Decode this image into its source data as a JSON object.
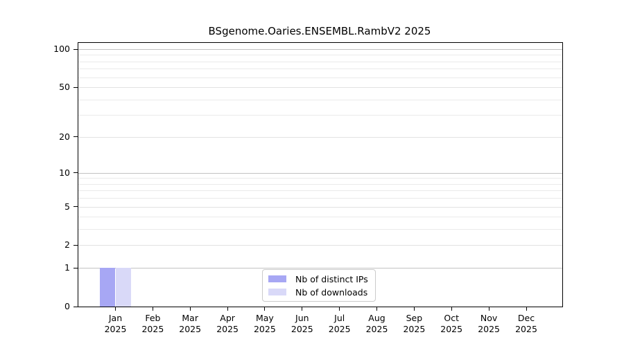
{
  "title": "BSgenome.Oaries.ENSEMBL.RambV2 2025",
  "colors": {
    "distinct_ips": "#a7a7f4",
    "downloads": "#d9d9f8",
    "grid_decade": "#c2c2c2",
    "grid_minor": "#eaeaea",
    "axis": "#000000",
    "legend_border": "#cacaca",
    "background": "#ffffff"
  },
  "chart_data": {
    "type": "bar",
    "title": "BSgenome.Oaries.ENSEMBL.RambV2 2025",
    "xlabel": "",
    "ylabel": "",
    "categories": [
      "Jan",
      "Feb",
      "Mar",
      "Apr",
      "May",
      "Jun",
      "Jul",
      "Aug",
      "Sep",
      "Oct",
      "Nov",
      "Dec"
    ],
    "year": "2025",
    "series": [
      {
        "name": "Nb of distinct IPs",
        "color": "#a7a7f4",
        "values": [
          1,
          0,
          0,
          0,
          0,
          0,
          0,
          0,
          0,
          0,
          0,
          0
        ]
      },
      {
        "name": "Nb of downloads",
        "color": "#d9d9f8",
        "values": [
          1,
          0,
          0,
          0,
          0,
          0,
          0,
          0,
          0,
          0,
          0,
          0
        ]
      }
    ],
    "y_axis": {
      "scale": "log1p",
      "ticks": [
        0,
        1,
        2,
        5,
        10,
        20,
        50,
        100
      ],
      "minor_ticks": [
        3,
        4,
        6,
        7,
        8,
        9,
        30,
        40,
        60,
        70,
        80,
        90
      ],
      "decade_ticks": [
        1,
        10,
        100
      ],
      "max_value": 110
    },
    "grid": true,
    "legend_position": "bottom-center"
  }
}
